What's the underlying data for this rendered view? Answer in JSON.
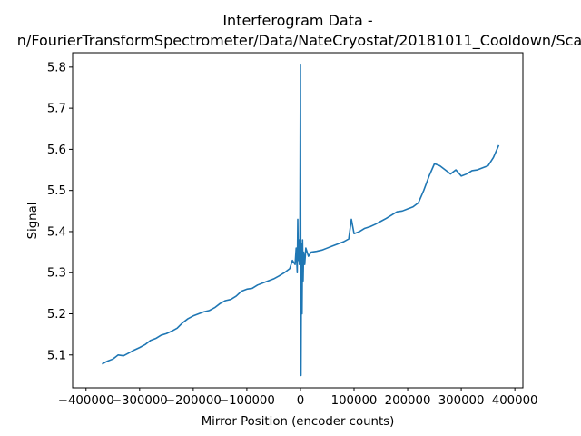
{
  "chart_data": {
    "type": "line",
    "title": "Interferogram Data -",
    "subtitle": "n/FourierTransformSpectrometer/Data/NateCryostat/20181011_Cooldown/Sca",
    "xlabel": "Mirror Position (encoder counts)",
    "ylabel": "Signal",
    "xlim": [
      -425000,
      415000
    ],
    "ylim": [
      5.02,
      5.835
    ],
    "xticks": [
      -400000,
      -300000,
      -200000,
      -100000,
      0,
      100000,
      200000,
      300000,
      400000
    ],
    "xtick_labels": [
      "−400000",
      "−300000",
      "−200000",
      "−100000",
      "0",
      "100000",
      "200000",
      "300000",
      "400000"
    ],
    "yticks": [
      5.1,
      5.2,
      5.3,
      5.4,
      5.5,
      5.6,
      5.7,
      5.8
    ],
    "ytick_labels": [
      "5.1",
      "5.2",
      "5.3",
      "5.4",
      "5.5",
      "5.6",
      "5.7",
      "5.8"
    ],
    "grid": false,
    "line_color": "#1f77b4",
    "series": [
      {
        "x": [
          -370000,
          -360000,
          -350000,
          -340000,
          -330000,
          -320000,
          -310000,
          -300000,
          -290000,
          -280000,
          -270000,
          -260000,
          -250000,
          -240000,
          -230000,
          -220000,
          -210000,
          -200000,
          -190000,
          -180000,
          -170000,
          -160000,
          -150000,
          -140000,
          -130000,
          -120000,
          -110000,
          -100000,
          -90000,
          -80000,
          -70000,
          -60000,
          -50000,
          -40000,
          -30000,
          -20000,
          -15000,
          -10000,
          -8000,
          -6000,
          -5000,
          -4000,
          -3000,
          -2000,
          -1000,
          0,
          1000,
          2000,
          3000,
          4000,
          5000,
          6000,
          8000,
          10000,
          15000,
          20000,
          30000,
          40000,
          50000,
          60000,
          70000,
          80000,
          90000,
          95000,
          100000,
          110000,
          120000,
          130000,
          140000,
          150000,
          160000,
          170000,
          180000,
          190000,
          200000,
          210000,
          220000,
          230000,
          240000,
          250000,
          260000,
          270000,
          280000,
          290000,
          300000,
          310000,
          320000,
          330000,
          340000,
          350000,
          360000,
          370000
        ],
        "y": [
          5.078,
          5.085,
          5.09,
          5.1,
          5.098,
          5.105,
          5.112,
          5.118,
          5.125,
          5.135,
          5.14,
          5.148,
          5.152,
          5.158,
          5.165,
          5.178,
          5.188,
          5.195,
          5.2,
          5.205,
          5.208,
          5.215,
          5.225,
          5.232,
          5.235,
          5.243,
          5.255,
          5.26,
          5.262,
          5.27,
          5.275,
          5.28,
          5.285,
          5.292,
          5.3,
          5.31,
          5.33,
          5.32,
          5.36,
          5.3,
          5.43,
          5.33,
          5.38,
          5.32,
          5.37,
          5.805,
          5.05,
          5.37,
          5.2,
          5.38,
          5.28,
          5.35,
          5.32,
          5.36,
          5.34,
          5.35,
          5.352,
          5.355,
          5.36,
          5.365,
          5.37,
          5.375,
          5.382,
          5.43,
          5.395,
          5.4,
          5.408,
          5.412,
          5.418,
          5.425,
          5.432,
          5.44,
          5.448,
          5.45,
          5.455,
          5.46,
          5.47,
          5.5,
          5.535,
          5.565,
          5.56,
          5.55,
          5.54,
          5.55,
          5.535,
          5.54,
          5.548,
          5.55,
          5.555,
          5.56,
          5.58,
          5.61
        ]
      }
    ]
  }
}
